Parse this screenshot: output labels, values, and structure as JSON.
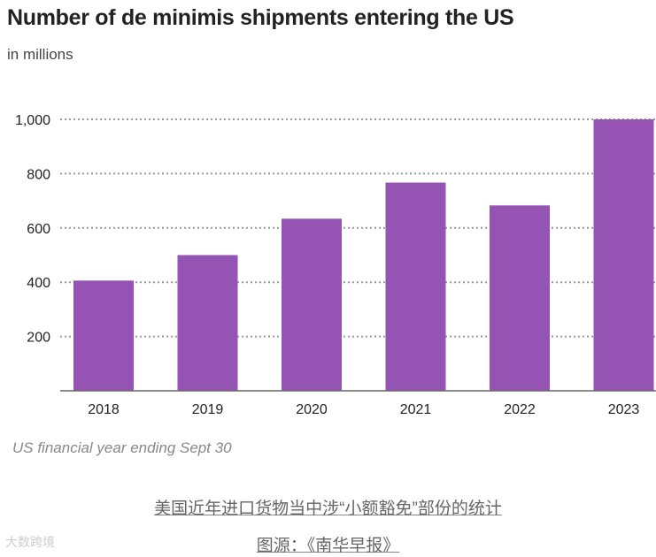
{
  "chart_data": {
    "type": "bar",
    "title": "Number of de minimis shipments entering the US",
    "subtitle": "in millions",
    "categories": [
      "2018",
      "2019",
      "2020",
      "2021",
      "2022",
      "2023"
    ],
    "values": [
      406,
      500,
      634,
      767,
      683,
      1000
    ],
    "yticks": [
      200,
      400,
      600,
      800,
      1000
    ],
    "ytick_labels": [
      "200",
      "400",
      "600",
      "800",
      "1,000"
    ],
    "ylim": [
      0,
      1000
    ],
    "grid": true,
    "bar_color": "#9553b3",
    "xlabel": "",
    "ylabel": "",
    "note": "US financial year ending Sept 30"
  },
  "caption": "美国近年进口货物当中涉“小额豁免”部份的统计",
  "source": "图源：《南华早报》",
  "watermark": "大数跨境"
}
